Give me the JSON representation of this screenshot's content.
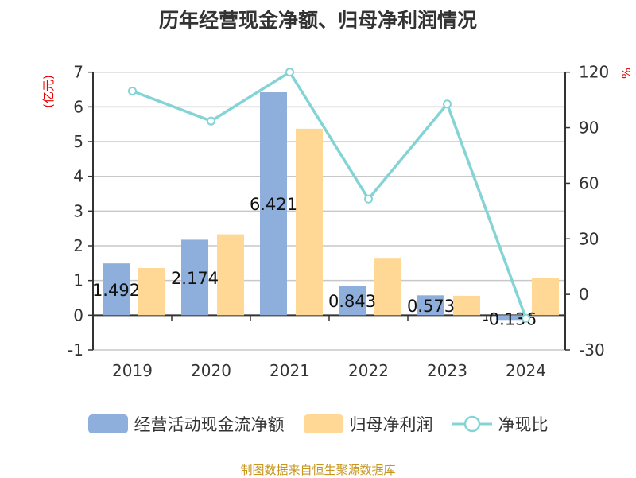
{
  "chart_data": {
    "type": "bar",
    "title": "历年经营现金净额、归母净利润情况",
    "categories": [
      "2019",
      "2020",
      "2021",
      "2022",
      "2023",
      "2024"
    ],
    "ylabel": "(亿元)",
    "y2label": "%",
    "ylim": [
      -1,
      7
    ],
    "y2lim": [
      -30,
      120
    ],
    "yticks": [
      "-1",
      "0",
      "1",
      "2",
      "3",
      "4",
      "5",
      "6",
      "7"
    ],
    "y2ticks": [
      "-30",
      "0",
      "30",
      "60",
      "90",
      "120"
    ],
    "series": [
      {
        "name": "经营活动现金流净额",
        "type": "bar",
        "axis": "left",
        "color": "#8eaedb",
        "values": [
          1.492,
          2.174,
          6.421,
          0.843,
          0.573,
          -0.136
        ],
        "labels": [
          "1.492",
          "2.174",
          "6.421",
          "0.843",
          "0.573",
          "-0.136"
        ]
      },
      {
        "name": "归母净利润",
        "type": "bar",
        "axis": "left",
        "color": "#ffd896",
        "values": [
          1.36,
          2.33,
          5.37,
          1.63,
          0.56,
          1.07
        ]
      },
      {
        "name": "净现比",
        "type": "line",
        "axis": "right",
        "color": "#84d4d6",
        "values": [
          109.8,
          93.6,
          120,
          51.5,
          102.8,
          -12.9
        ]
      }
    ],
    "legend_position": "bottom",
    "grid": true
  },
  "source": "制图数据来自恒生聚源数据库"
}
